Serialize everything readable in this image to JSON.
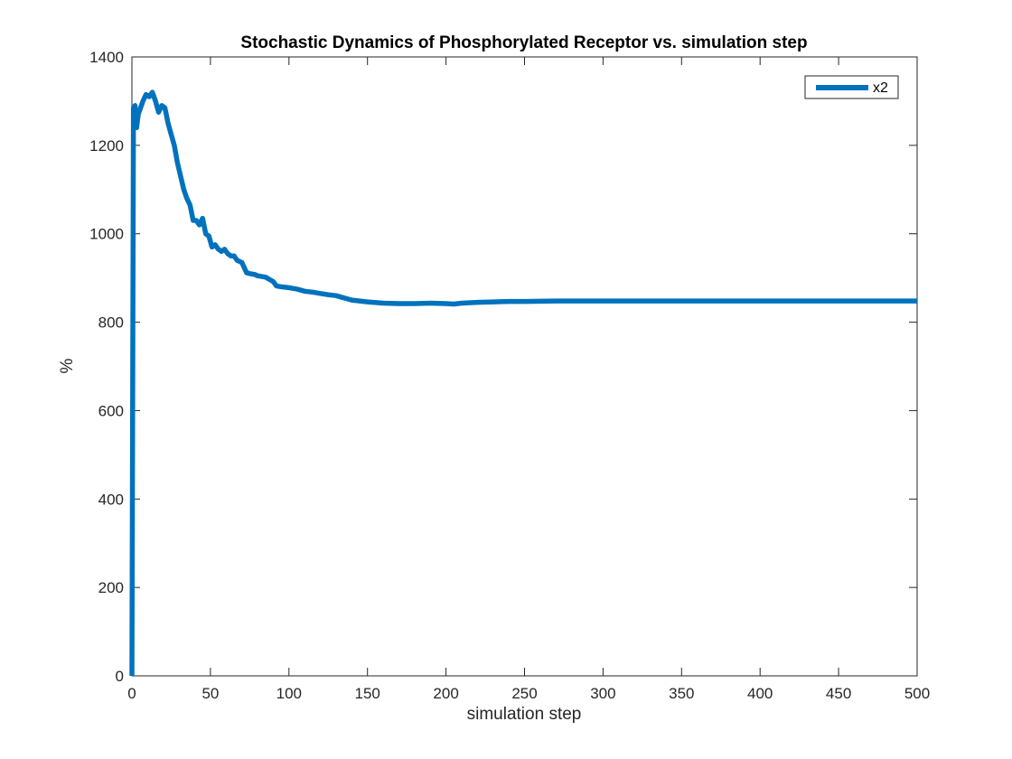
{
  "chart_data": {
    "type": "line",
    "title": "Stochastic Dynamics of Phosphorylated Receptor vs. simulation step",
    "xlabel": "simulation step",
    "ylabel": "%",
    "xlim": [
      0,
      500
    ],
    "ylim": [
      0,
      1400
    ],
    "xticks": [
      "0",
      "50",
      "100",
      "150",
      "200",
      "250",
      "300",
      "350",
      "400",
      "450",
      "500"
    ],
    "yticks": [
      "0",
      "200",
      "400",
      "600",
      "800",
      "1000",
      "1200",
      "1400"
    ],
    "grid": false,
    "legend_position": "top-right",
    "line_color": "#0072BD",
    "series": [
      {
        "name": "x2",
        "x": [
          0,
          1,
          2,
          3,
          4,
          5,
          7,
          9,
          11,
          13,
          15,
          17,
          19,
          21,
          23,
          25,
          27,
          29,
          31,
          33,
          35,
          37,
          39,
          41,
          43,
          45,
          47,
          49,
          51,
          53,
          55,
          57,
          59,
          61,
          63,
          65,
          67,
          70,
          73,
          75,
          78,
          80,
          85,
          90,
          92,
          95,
          100,
          105,
          110,
          115,
          120,
          125,
          130,
          135,
          140,
          145,
          150,
          160,
          170,
          180,
          190,
          200,
          205,
          210,
          220,
          230,
          240,
          250,
          270,
          300,
          350,
          400,
          450,
          500
        ],
        "y": [
          0,
          1285,
          1290,
          1240,
          1270,
          1280,
          1300,
          1315,
          1310,
          1320,
          1300,
          1275,
          1290,
          1285,
          1250,
          1225,
          1200,
          1160,
          1130,
          1100,
          1080,
          1065,
          1030,
          1030,
          1020,
          1035,
          1000,
          995,
          970,
          975,
          965,
          960,
          965,
          955,
          950,
          950,
          940,
          935,
          912,
          910,
          908,
          905,
          902,
          892,
          882,
          880,
          878,
          875,
          870,
          868,
          865,
          862,
          860,
          855,
          850,
          848,
          846,
          843,
          842,
          842,
          843,
          842,
          841,
          843,
          845,
          846,
          847,
          847,
          848,
          848,
          848,
          848,
          848,
          848
        ]
      }
    ]
  }
}
